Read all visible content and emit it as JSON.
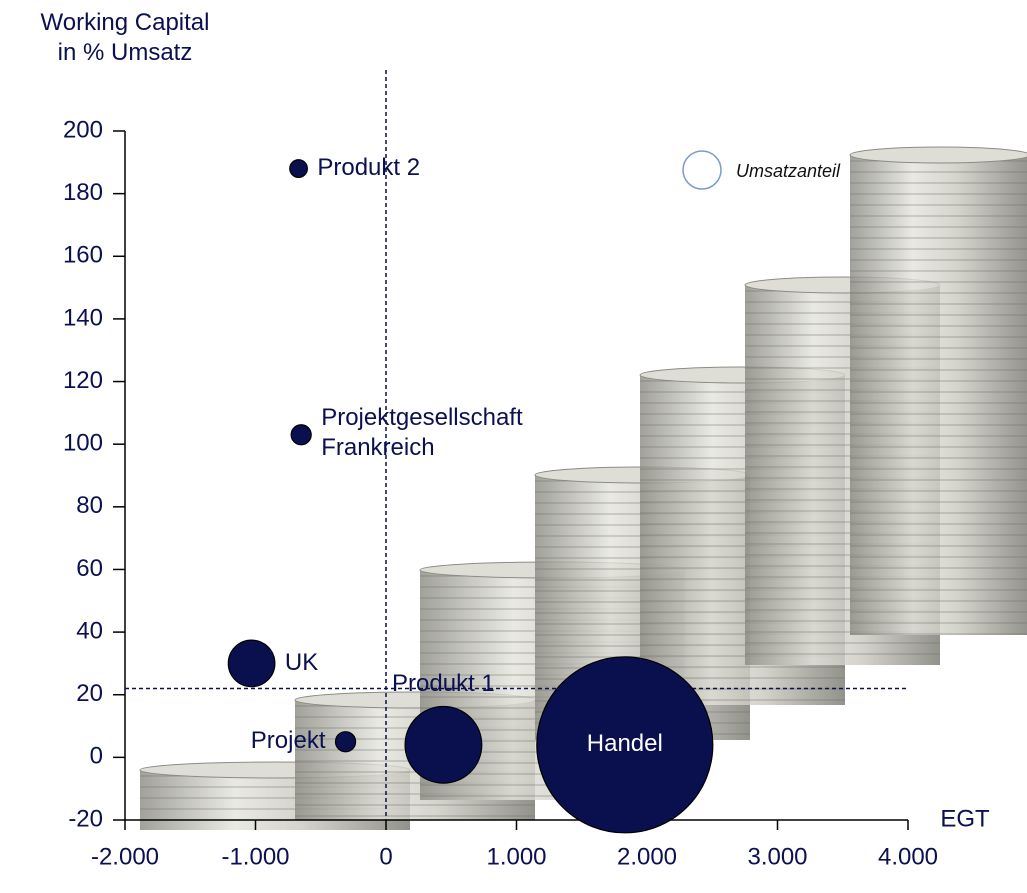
{
  "chart_data": {
    "type": "bubble",
    "y_axis_title": "Working Capital\nin % Umsatz",
    "x_axis_title": "EGT",
    "legend_label": "Umsatzanteil",
    "xlim": [
      -2000,
      4000
    ],
    "xticks": [
      {
        "value": -2000,
        "label": "-2.000"
      },
      {
        "value": -1000,
        "label": "-1.000"
      },
      0,
      {
        "value": 1000,
        "label": "1.000"
      },
      {
        "value": 2000,
        "label": "2.000"
      },
      {
        "value": 3000,
        "label": "3.000"
      },
      {
        "value": 4000,
        "label": "4.000"
      }
    ],
    "ylim": [
      -20,
      200
    ],
    "yticks": [
      -20,
      0,
      20,
      40,
      60,
      80,
      100,
      120,
      140,
      160,
      180,
      200
    ],
    "reference_lines": {
      "x": 0,
      "y": 22
    },
    "color": "#0a0f4d",
    "points": [
      {
        "name": "Produkt 2",
        "x": -670,
        "y": 188,
        "size": 1
      },
      {
        "name": "Projektgesellschaft\nFrankreich",
        "x": -650,
        "y": 103,
        "size": 1.3
      },
      {
        "name": "UK",
        "x": -1030,
        "y": 30,
        "size": 7
      },
      {
        "name": "Projekt",
        "x": -310,
        "y": 5,
        "size": 1.3
      },
      {
        "name": "Produkt 1",
        "x": 440,
        "y": 4,
        "size": 19
      },
      {
        "name": "Handel",
        "x": 1830,
        "y": 4,
        "size": 100
      }
    ]
  }
}
